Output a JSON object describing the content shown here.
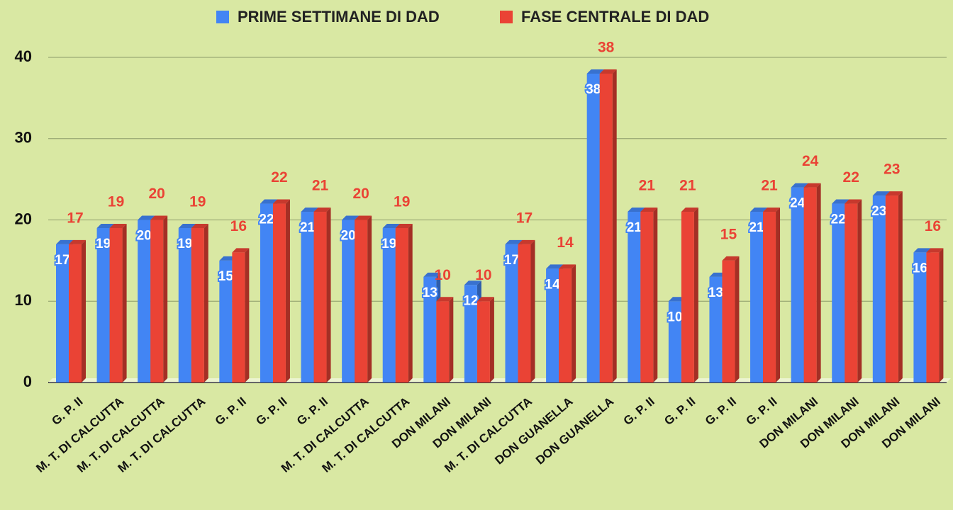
{
  "chart_data": {
    "type": "bar3d",
    "categories": [
      "G. P. II",
      "M. T. DI CALCUTTA",
      "M. T. DI CALCUTTA",
      "M. T. DI CALCUTTA",
      "G. P. II",
      "G. P. II",
      "G. P. II",
      "M. T. DI CALCUTTA",
      "M. T. DI CALCUTTA",
      "DON MILANI",
      "DON MILANI",
      "M. T. DI CALCUTTA",
      "DON GUANELLA",
      "DON GUANELLA",
      "G. P. II",
      "G. P. II",
      "G. P. II",
      "G. P. II",
      "DON MILANI",
      "DON MILANI",
      "DON MILANI",
      "DON MILANI"
    ],
    "series": [
      {
        "name": "PRIME SETTIMANE DI DAD",
        "color": "#4285f4",
        "values": [
          17,
          19,
          20,
          19,
          15,
          22,
          21,
          20,
          19,
          13,
          12,
          17,
          14,
          38,
          21,
          10,
          13,
          21,
          24,
          22,
          23,
          16
        ]
      },
      {
        "name": "FASE CENTRALE DI DAD",
        "color": "#ea4335",
        "values": [
          17,
          19,
          20,
          19,
          16,
          22,
          21,
          20,
          19,
          10,
          10,
          17,
          14,
          38,
          21,
          21,
          15,
          21,
          24,
          22,
          23,
          16
        ]
      }
    ],
    "ylim": [
      0,
      40
    ],
    "yticks": [
      0,
      10,
      20,
      30,
      40
    ],
    "grid": true,
    "legend": "top"
  }
}
